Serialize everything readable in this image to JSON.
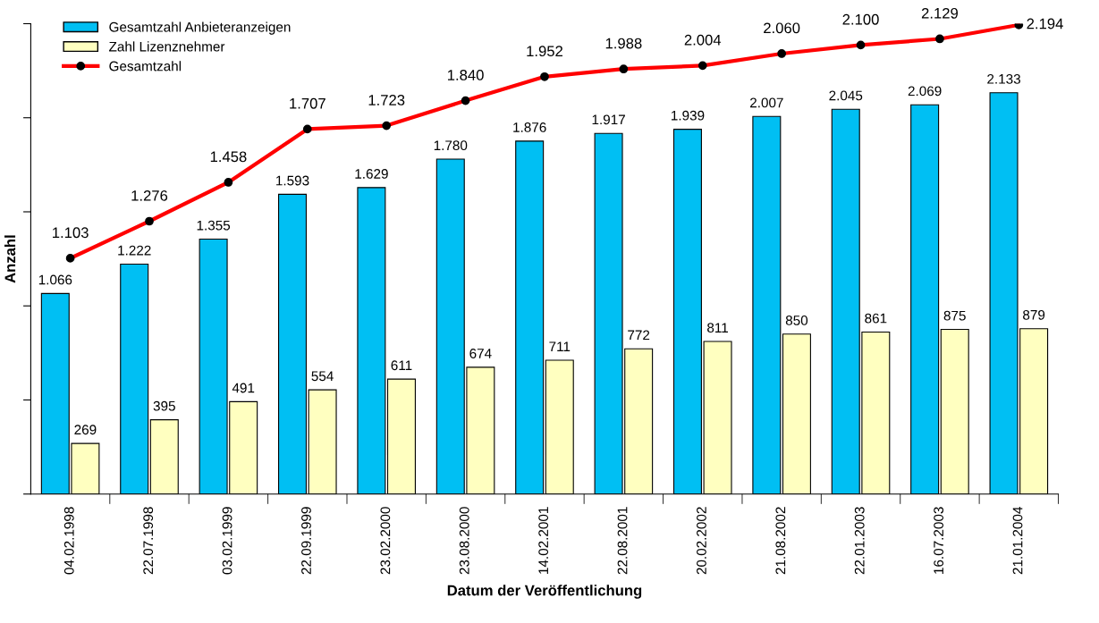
{
  "chart_data": {
    "type": "bar",
    "xlabel": "Datum der Veröffentlichung",
    "ylabel": "Anzahl",
    "categories": [
      "04.02.1998",
      "22.07.1998",
      "03.02.1999",
      "22.09.1999",
      "23.02.2000",
      "23.08.2000",
      "14.02.2001",
      "22.08.2001",
      "20.02.2002",
      "21.08.2002",
      "22.01.2003",
      "16.07.2003",
      "21.01.2004"
    ],
    "series": [
      {
        "name": "Gesamtzahl Anbieteranzeigen",
        "color": "#00bff3",
        "values": [
          1066,
          1222,
          1355,
          1593,
          1629,
          1780,
          1876,
          1917,
          1939,
          2007,
          2045,
          2069,
          2133
        ],
        "value_labels": [
          "1.066",
          "1.222",
          "1.355",
          "1.593",
          "1.629",
          "1.780",
          "1.876",
          "1.917",
          "1.939",
          "2.007",
          "2.045",
          "2.069",
          "2.133"
        ]
      },
      {
        "name": "Zahl Lizenznehmer",
        "color": "#ffffc0",
        "values": [
          269,
          395,
          491,
          554,
          611,
          674,
          711,
          772,
          811,
          850,
          861,
          875,
          879
        ],
        "value_labels": [
          "269",
          "395",
          "491",
          "554",
          "611",
          "674",
          "711",
          "772",
          "811",
          "850",
          "861",
          "875",
          "879"
        ]
      },
      {
        "name": "Gesamtzahl",
        "type": "line",
        "axis": "y2",
        "color": "#ff0000",
        "marker": "circle",
        "values": [
          1103,
          1276,
          1458,
          1707,
          1723,
          1840,
          1952,
          1988,
          2004,
          2060,
          2100,
          2129,
          2194
        ],
        "value_labels": [
          "1.103",
          "1.276",
          "1.458",
          "1.707",
          "1.723",
          "1.840",
          "1.952",
          "1.988",
          "2.004",
          "2.060",
          "2.100",
          "2.129",
          "2.194"
        ]
      }
    ],
    "ylim": [
      0,
      2500
    ],
    "yticks": [
      {
        "value": 0,
        "label": null
      },
      {
        "value": 500,
        "label": null
      },
      {
        "value": 1000,
        "label": null
      },
      {
        "value": 1500,
        "label": null
      },
      {
        "value": 2000,
        "label": null
      },
      {
        "value": 2500,
        "label": null
      }
    ],
    "y2lim": [
      0,
      2200
    ],
    "tick_labels": "x",
    "grid": false,
    "legend": "top left"
  }
}
